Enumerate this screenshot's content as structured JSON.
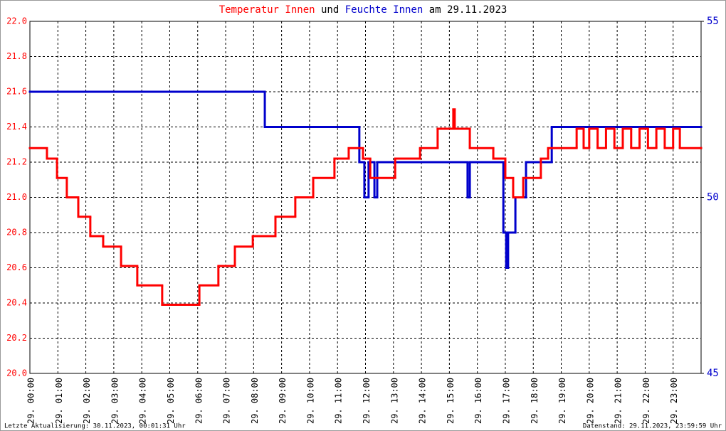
{
  "chart_data": {
    "type": "step-line",
    "title_connector": "und",
    "title_date": "am 29.11.2023",
    "footer_left": "Letzte Aktualisierung: 30.11.2023, 00:01:31 Uhr",
    "footer_right": "Datenstand: 29.11.2023, 23:59:59 Uhr",
    "step": "post",
    "grid": true,
    "xlim": [
      0,
      24
    ],
    "xticks": [
      {
        "value": 0,
        "label": "29. 00:00"
      },
      {
        "value": 1,
        "label": "29. 01:00"
      },
      {
        "value": 2,
        "label": "29. 02:00"
      },
      {
        "value": 3,
        "label": "29. 03:00"
      },
      {
        "value": 4,
        "label": "29. 04:00"
      },
      {
        "value": 5,
        "label": "29. 05:00"
      },
      {
        "value": 6,
        "label": "29. 06:00"
      },
      {
        "value": 7,
        "label": "29. 07:00"
      },
      {
        "value": 8,
        "label": "29. 08:00"
      },
      {
        "value": 9,
        "label": "29. 09:00"
      },
      {
        "value": 10,
        "label": "29. 10:00"
      },
      {
        "value": 11,
        "label": "29. 11:00"
      },
      {
        "value": 12,
        "label": "29. 12:00"
      },
      {
        "value": 13,
        "label": "29. 13:00"
      },
      {
        "value": 14,
        "label": "29. 14:00"
      },
      {
        "value": 15,
        "label": "29. 15:00"
      },
      {
        "value": 16,
        "label": "29. 16:00"
      },
      {
        "value": 17,
        "label": "29. 17:00"
      },
      {
        "value": 18,
        "label": "29. 18:00"
      },
      {
        "value": 19,
        "label": "29. 19:00"
      },
      {
        "value": 20,
        "label": "29. 20:00"
      },
      {
        "value": 21,
        "label": "29. 21:00"
      },
      {
        "value": 22,
        "label": "29. 22:00"
      },
      {
        "value": 23,
        "label": "29. 23:00"
      }
    ],
    "ylim": [
      20,
      22
    ],
    "yticks": [
      {
        "value": 20,
        "label": "20.0"
      },
      20.2,
      20.4,
      20.6,
      20.8,
      {
        "value": 21,
        "label": "21.0"
      },
      21.2,
      21.4,
      21.6,
      21.8,
      {
        "value": 22,
        "label": "22.0"
      }
    ],
    "y2lim": [
      45,
      55
    ],
    "y2ticks": [
      45,
      50,
      55
    ],
    "series": [
      {
        "name": "Temperatur Innen",
        "color": "#ff0000",
        "x": [
          0,
          0.61,
          0.97,
          1.32,
          1.73,
          2.16,
          2.62,
          3.26,
          3.84,
          4.73,
          6.06,
          6.74,
          7.33,
          7.97,
          8.78,
          9.49,
          10.13,
          10.89,
          11.4,
          11.91,
          12.17,
          13.06,
          13.95,
          14.58,
          15.14,
          15.19,
          15.73,
          16.57,
          17.0,
          17.28,
          17.64,
          18.27,
          18.53,
          19.55,
          19.8,
          20.0,
          20.3,
          20.6,
          20.9,
          21.2,
          21.5,
          21.8,
          22.1,
          22.4,
          22.7,
          23.0,
          23.24,
          24
        ],
        "values": [
          21.28,
          21.22,
          21.11,
          21.0,
          20.89,
          20.78,
          20.72,
          20.61,
          20.5,
          20.39,
          20.5,
          20.61,
          20.72,
          20.78,
          20.89,
          21.0,
          21.11,
          21.22,
          21.28,
          21.22,
          21.11,
          21.22,
          21.28,
          21.39,
          21.5,
          21.39,
          21.28,
          21.22,
          21.11,
          21.0,
          21.11,
          21.22,
          21.28,
          21.39,
          21.28,
          21.39,
          21.28,
          21.39,
          21.28,
          21.39,
          21.28,
          21.39,
          21.28,
          21.39,
          21.28,
          21.39,
          21.28,
          21.28
        ]
      },
      {
        "name": "Feuchte Innen",
        "color": "#0000cc",
        "axis": "y2",
        "x": [
          0,
          8.4,
          11.78,
          11.96,
          12.11,
          12.32,
          12.42,
          15.65,
          15.73,
          16.93,
          17.03,
          17.1,
          17.36,
          17.74,
          18.66,
          24
        ],
        "values": [
          53,
          52,
          51,
          50,
          51,
          50,
          51,
          50,
          51,
          49,
          48,
          49,
          50,
          51,
          52,
          52
        ]
      }
    ]
  }
}
